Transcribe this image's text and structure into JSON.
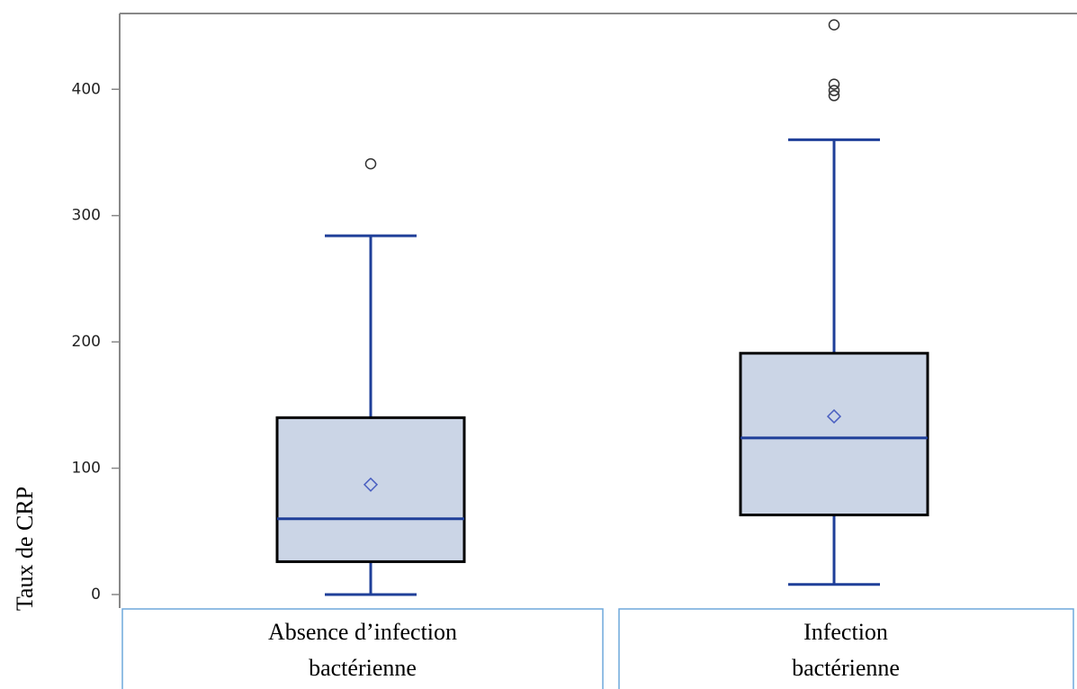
{
  "chart_data": {
    "type": "box",
    "y_label": "Taux de CRP",
    "categories": [
      [
        "Absence d’infection",
        "bactérienne"
      ],
      [
        "Infection",
        "bactérienne"
      ]
    ],
    "boxes": [
      {
        "min": 0,
        "q1": 26,
        "median": 60,
        "q3": 140,
        "max": 284,
        "mean": 87,
        "outliers": [
          341
        ]
      },
      {
        "min": 8,
        "q1": 63,
        "median": 124,
        "q3": 191,
        "max": 360,
        "mean": 141,
        "outliers": [
          451,
          404,
          399,
          395
        ]
      }
    ],
    "box_color": "#cbd5e6",
    "line_color": "#1f3f99",
    "mean_color": "#4a5fc1",
    "ylim": [
      -10,
      460
    ],
    "yticks": [
      0,
      100,
      200,
      300,
      400
    ]
  }
}
